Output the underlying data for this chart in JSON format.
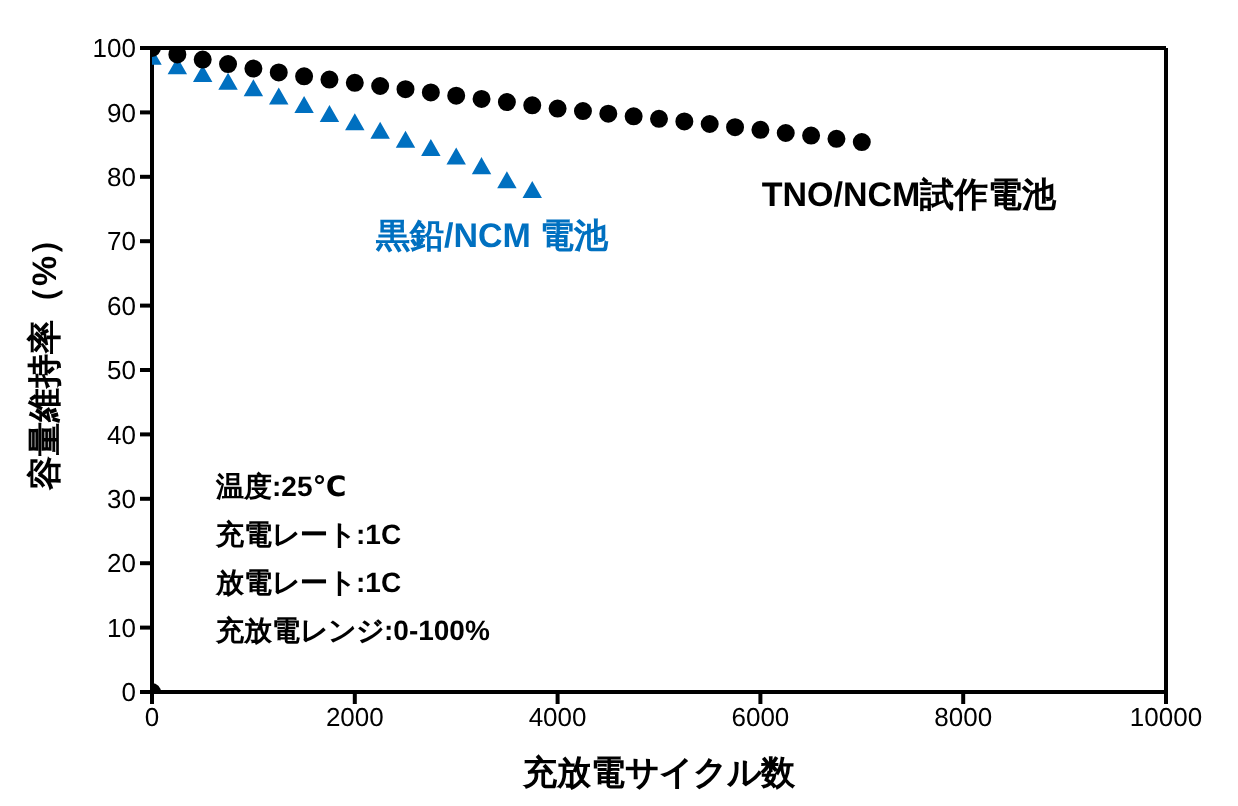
{
  "chart_data": {
    "type": "scatter",
    "xlabel": "充放電サイクル数",
    "ylabel": "容量維持率（%）",
    "xlim": [
      0,
      10000
    ],
    "xticks": [
      0,
      2000,
      4000,
      6000,
      8000,
      10000
    ],
    "ylim": [
      0,
      100
    ],
    "yticks": [
      0,
      10,
      20,
      30,
      40,
      50,
      60,
      70,
      80,
      90,
      100
    ],
    "annotations": [
      "温度:25℃",
      "充電レート:1C",
      "放電レート:1C",
      "充放電レンジ:0-100%"
    ],
    "series": [
      {
        "name": "TNO/NCM試作電池",
        "color": "#000000",
        "marker": "circle",
        "x": [
          0,
          250,
          500,
          750,
          1000,
          1250,
          1500,
          1750,
          2000,
          2250,
          2500,
          2750,
          3000,
          3250,
          3500,
          3750,
          4000,
          4250,
          4500,
          4750,
          5000,
          5250,
          5500,
          5750,
          6000,
          6250,
          6500,
          6750,
          7000
        ],
        "values": [
          100,
          99,
          98.2,
          97.5,
          96.8,
          96.2,
          95.6,
          95.1,
          94.6,
          94.1,
          93.6,
          93.1,
          92.6,
          92.1,
          91.6,
          91.1,
          90.6,
          90.2,
          89.8,
          89.4,
          89,
          88.6,
          88.2,
          87.7,
          87.3,
          86.8,
          86.4,
          85.9,
          85.4
        ]
      },
      {
        "name": "黒鉛/NCM 電池",
        "color": "#0070c0",
        "marker": "triangle",
        "x": [
          0,
          250,
          500,
          750,
          1000,
          1250,
          1500,
          1750,
          2000,
          2250,
          2500,
          2750,
          3000,
          3250,
          3500,
          3750
        ],
        "values": [
          98.5,
          97,
          95.8,
          94.6,
          93.6,
          92.3,
          91,
          89.6,
          88.3,
          87,
          85.6,
          84.3,
          83,
          81.5,
          79.3,
          77.8
        ]
      },
      {
        "color": "#000000",
        "marker": "circle",
        "x": [
          0
        ],
        "values": [
          0
        ]
      }
    ]
  }
}
